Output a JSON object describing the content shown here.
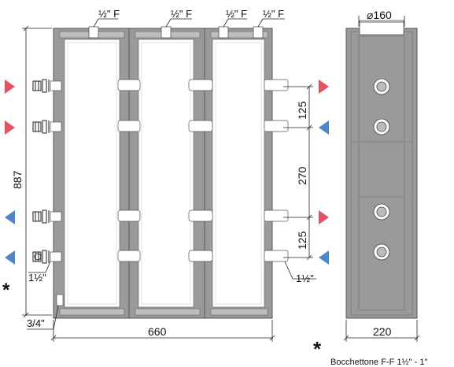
{
  "labels": {
    "top_connections": [
      "½\" F",
      "½\" F",
      "½\" F",
      "½\" F"
    ],
    "side_width": "⌀160",
    "height": "887",
    "spacing_top": "125",
    "spacing_mid": "270",
    "spacing_bottom": "125",
    "left_connection": "1½\"",
    "right_connection": "1½\"",
    "drain": "3/4\"",
    "front_width": "660",
    "side_depth": "220",
    "note_marker": "*",
    "note_marker_left": "*",
    "note_text": "Bocchettone  F-F 1½\" - 1\""
  },
  "arrows_left": [
    "red",
    "red",
    "blue",
    "blue"
  ],
  "arrows_right": [
    "red",
    "blue",
    "red",
    "blue"
  ],
  "colors": {
    "body": "#9a9a9a",
    "frame_outline": "#555555",
    "inner_panel": "#ffffff",
    "flow_red": "#e8505f",
    "flow_blue": "#4d87c9"
  }
}
